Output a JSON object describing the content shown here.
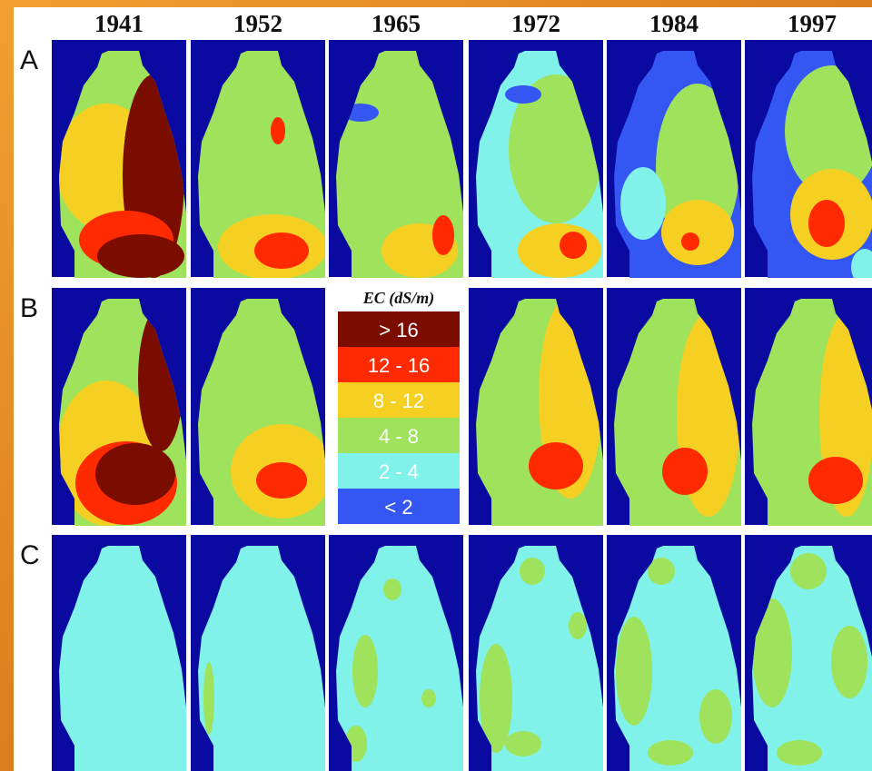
{
  "columns": [
    "1941",
    "1952",
    "1965",
    "1972",
    "1984",
    "1997"
  ],
  "rows": [
    "A",
    "B",
    "C"
  ],
  "legend": {
    "title": "EC (dS/m)",
    "items": [
      {
        "label": "> 16",
        "color": "#7a0c00"
      },
      {
        "label": "12 - 16",
        "color": "#ff2a00"
      },
      {
        "label": "8 - 12",
        "color": "#f5d022"
      },
      {
        "label": "4 - 8",
        "color": "#9fe35c"
      },
      {
        "label": "2 - 4",
        "color": "#80f2ea"
      },
      {
        "label": "< 2",
        "color": "#3456f2"
      }
    ]
  }
}
